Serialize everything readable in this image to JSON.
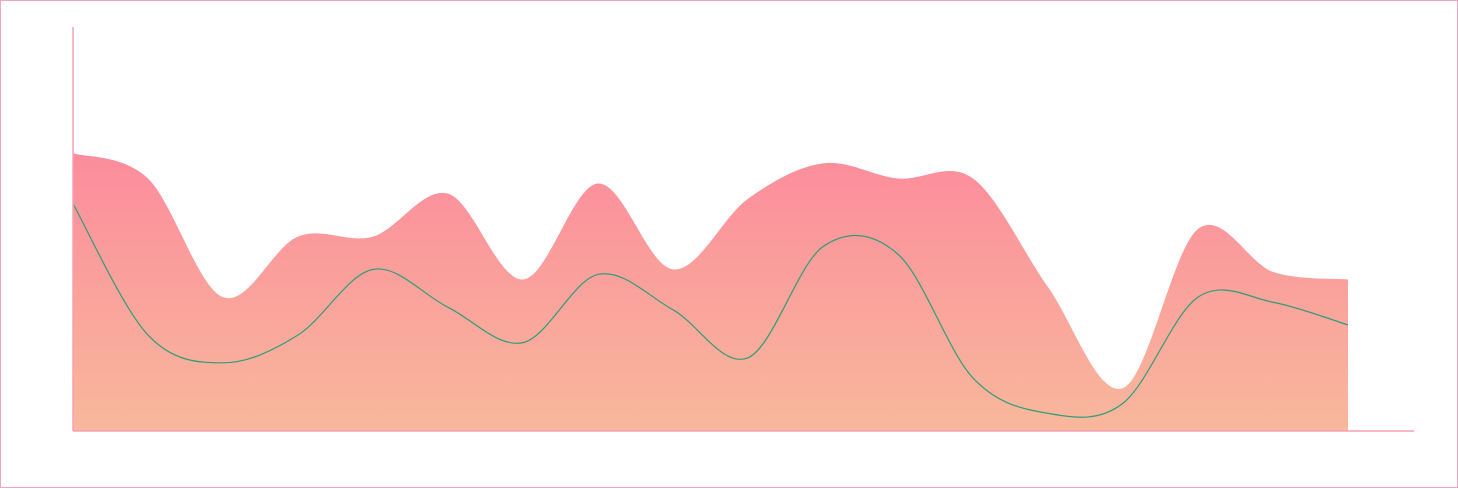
{
  "chart_data": {
    "type": "area",
    "title": "",
    "xlabel": "",
    "ylabel": "",
    "xlim": [
      0,
      17
    ],
    "ylim": [
      0,
      16
    ],
    "grid": false,
    "legend": "none",
    "series": [
      {
        "kind": "area",
        "color_top": "#fc8c9c",
        "color_bottom": "#f8b89c",
        "x": [
          0,
          1,
          2,
          3,
          4,
          5,
          6,
          7,
          8,
          9,
          10,
          11,
          12,
          13,
          14,
          15,
          16,
          17
        ],
        "values": [
          11.0,
          10.0,
          5.3,
          7.7,
          7.7,
          9.4,
          6.0,
          9.8,
          6.4,
          9.2,
          10.6,
          10.0,
          10.0,
          5.7,
          1.7,
          8.0,
          6.3,
          6.0
        ]
      },
      {
        "kind": "line",
        "color": "#2e9e78",
        "x": [
          0,
          1,
          2,
          3,
          4,
          5,
          6,
          7,
          8,
          9,
          10,
          11,
          12,
          13,
          14,
          15,
          16,
          17
        ],
        "values": [
          9.0,
          3.8,
          2.7,
          3.8,
          6.4,
          4.9,
          3.5,
          6.2,
          4.8,
          2.9,
          7.3,
          7.0,
          2.1,
          0.7,
          1.1,
          5.3,
          5.1,
          4.2
        ]
      }
    ],
    "colors": {
      "axis": "#f5a0b4",
      "frame": "#f0a6c0"
    }
  }
}
